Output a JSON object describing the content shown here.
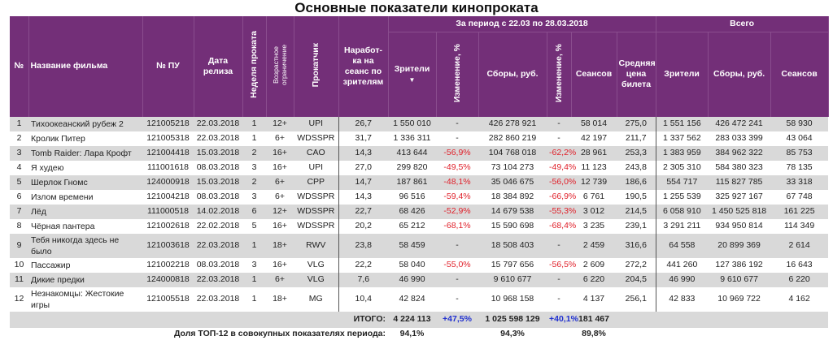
{
  "title": "Основные показатели кинопроката",
  "header": {
    "num": "№",
    "name": "Название фильма",
    "pu": "№ ПУ",
    "release": "Дата релиза",
    "week": "Неделя проката",
    "age": "Возрастное ограничение",
    "distributor": "Прокатчик",
    "per_session": "Наработ-ка на сеанс по зрителям",
    "period_group": "За период с 22.03 по 28.03.2018",
    "viewers": "Зрители",
    "sort_icon": "▼",
    "change1": "Изменение, %",
    "gross": "Сборы, руб.",
    "change2": "Изменение, %",
    "sessions": "Сеансов",
    "avg_price": "Средняя цена билета",
    "total_group": "Всего",
    "total_viewers": "Зрители",
    "total_gross": "Сборы, руб.",
    "total_sessions": "Сеансов"
  },
  "rows": [
    {
      "n": "1",
      "name": "Тихоокеанский рубеж 2",
      "pu": "121005218",
      "release": "22.03.2018",
      "week": "1",
      "age": "12+",
      "dist": "UPI",
      "per": "26,7",
      "viewers": "1 550 010",
      "ch1": "-",
      "gross": "426 278 921",
      "ch2": "-",
      "sessions": "58 014",
      "price": "275,0",
      "t_viewers": "1 551 156",
      "t_gross": "426 472 241",
      "t_sessions": "58 930"
    },
    {
      "n": "2",
      "name": "Кролик Питер",
      "pu": "121005318",
      "release": "22.03.2018",
      "week": "1",
      "age": "6+",
      "dist": "WDSSPR",
      "per": "31,7",
      "viewers": "1 336 311",
      "ch1": "-",
      "gross": "282 860 219",
      "ch2": "-",
      "sessions": "42 197",
      "price": "211,7",
      "t_viewers": "1 337 562",
      "t_gross": "283 033 399",
      "t_sessions": "43 064"
    },
    {
      "n": "3",
      "name": "Tomb Raider: Лара Крофт",
      "pu": "121004418",
      "release": "15.03.2018",
      "week": "2",
      "age": "16+",
      "dist": "CAO",
      "per": "14,3",
      "viewers": "413 644",
      "ch1": "-56,9%",
      "gross": "104 768 018",
      "ch2": "-62,2%",
      "sessions": "28 961",
      "price": "253,3",
      "t_viewers": "1 383 959",
      "t_gross": "384 962 322",
      "t_sessions": "85 753"
    },
    {
      "n": "4",
      "name": "Я худею",
      "pu": "111001618",
      "release": "08.03.2018",
      "week": "3",
      "age": "16+",
      "dist": "UPI",
      "per": "27,0",
      "viewers": "299 820",
      "ch1": "-49,5%",
      "gross": "73 104 273",
      "ch2": "-49,4%",
      "sessions": "11 123",
      "price": "243,8",
      "t_viewers": "2 305 310",
      "t_gross": "584 380 323",
      "t_sessions": "78 135"
    },
    {
      "n": "5",
      "name": "Шерлок Гномс",
      "pu": "124000918",
      "release": "15.03.2018",
      "week": "2",
      "age": "6+",
      "dist": "CPP",
      "per": "14,7",
      "viewers": "187 861",
      "ch1": "-48,1%",
      "gross": "35 046 675",
      "ch2": "-56,0%",
      "sessions": "12 739",
      "price": "186,6",
      "t_viewers": "554 717",
      "t_gross": "115 827 785",
      "t_sessions": "33 318"
    },
    {
      "n": "6",
      "name": "Излом времени",
      "pu": "121004218",
      "release": "08.03.2018",
      "week": "3",
      "age": "6+",
      "dist": "WDSSPR",
      "per": "14,3",
      "viewers": "96 516",
      "ch1": "-59,4%",
      "gross": "18 384 892",
      "ch2": "-66,9%",
      "sessions": "6 761",
      "price": "190,5",
      "t_viewers": "1 255 539",
      "t_gross": "325 927 167",
      "t_sessions": "67 748"
    },
    {
      "n": "7",
      "name": "Лёд",
      "pu": "111000518",
      "release": "14.02.2018",
      "week": "6",
      "age": "12+",
      "dist": "WDSSPR",
      "per": "22,7",
      "viewers": "68 426",
      "ch1": "-52,9%",
      "gross": "14 679 538",
      "ch2": "-55,3%",
      "sessions": "3 012",
      "price": "214,5",
      "t_viewers": "6 058 910",
      "t_gross": "1 450 525 818",
      "t_sessions": "161 225"
    },
    {
      "n": "8",
      "name": "Чёрная пантера",
      "pu": "121002618",
      "release": "22.02.2018",
      "week": "5",
      "age": "16+",
      "dist": "WDSSPR",
      "per": "20,2",
      "viewers": "65 212",
      "ch1": "-68,1%",
      "gross": "15 590 698",
      "ch2": "-68,4%",
      "sessions": "3 235",
      "price": "239,1",
      "t_viewers": "3 291 211",
      "t_gross": "934 950 814",
      "t_sessions": "114 349"
    },
    {
      "n": "9",
      "name": "Тебя никогда здесь не было",
      "pu": "121003618",
      "release": "22.03.2018",
      "week": "1",
      "age": "18+",
      "dist": "RWV",
      "per": "23,8",
      "viewers": "58 459",
      "ch1": "-",
      "gross": "18 508 403",
      "ch2": "-",
      "sessions": "2 459",
      "price": "316,6",
      "t_viewers": "64 558",
      "t_gross": "20 899 369",
      "t_sessions": "2 614"
    },
    {
      "n": "10",
      "name": "Пассажир",
      "pu": "121002218",
      "release": "08.03.2018",
      "week": "3",
      "age": "16+",
      "dist": "VLG",
      "per": "22,2",
      "viewers": "58 040",
      "ch1": "-55,0%",
      "gross": "15 797 656",
      "ch2": "-56,5%",
      "sessions": "2 609",
      "price": "272,2",
      "t_viewers": "441 260",
      "t_gross": "127 386 192",
      "t_sessions": "16 643"
    },
    {
      "n": "11",
      "name": "Дикие предки",
      "pu": "124000818",
      "release": "22.03.2018",
      "week": "1",
      "age": "6+",
      "dist": "VLG",
      "per": "7,6",
      "viewers": "46 990",
      "ch1": "-",
      "gross": "9 610 677",
      "ch2": "-",
      "sessions": "6 220",
      "price": "204,5",
      "t_viewers": "46 990",
      "t_gross": "9 610 677",
      "t_sessions": "6 220"
    },
    {
      "n": "12",
      "name": "Незнакомцы: Жестокие игры",
      "pu": "121005518",
      "release": "22.03.2018",
      "week": "1",
      "age": "18+",
      "dist": "MG",
      "per": "10,4",
      "viewers": "42 824",
      "ch1": "-",
      "gross": "10 968 158",
      "ch2": "-",
      "sessions": "4 137",
      "price": "256,1",
      "t_viewers": "42 833",
      "t_gross": "10 969 722",
      "t_sessions": "4 162"
    }
  ],
  "totals": {
    "label": "ИТОГО:",
    "viewers": "4 224 113",
    "ch1": "+47,5%",
    "gross": "1 025 598 129",
    "ch2": "+40,1%",
    "sessions": "181 467"
  },
  "share": {
    "label": "Доля ТОП-12 в совокупных показателях периода:",
    "viewers": "94,1%",
    "gross": "94,3%",
    "sessions": "89,8%"
  },
  "colors": {
    "header_bg": "#732f78",
    "negative": "#e0202a",
    "positive": "#2030d0",
    "row_alt": "#d9d9d9"
  }
}
